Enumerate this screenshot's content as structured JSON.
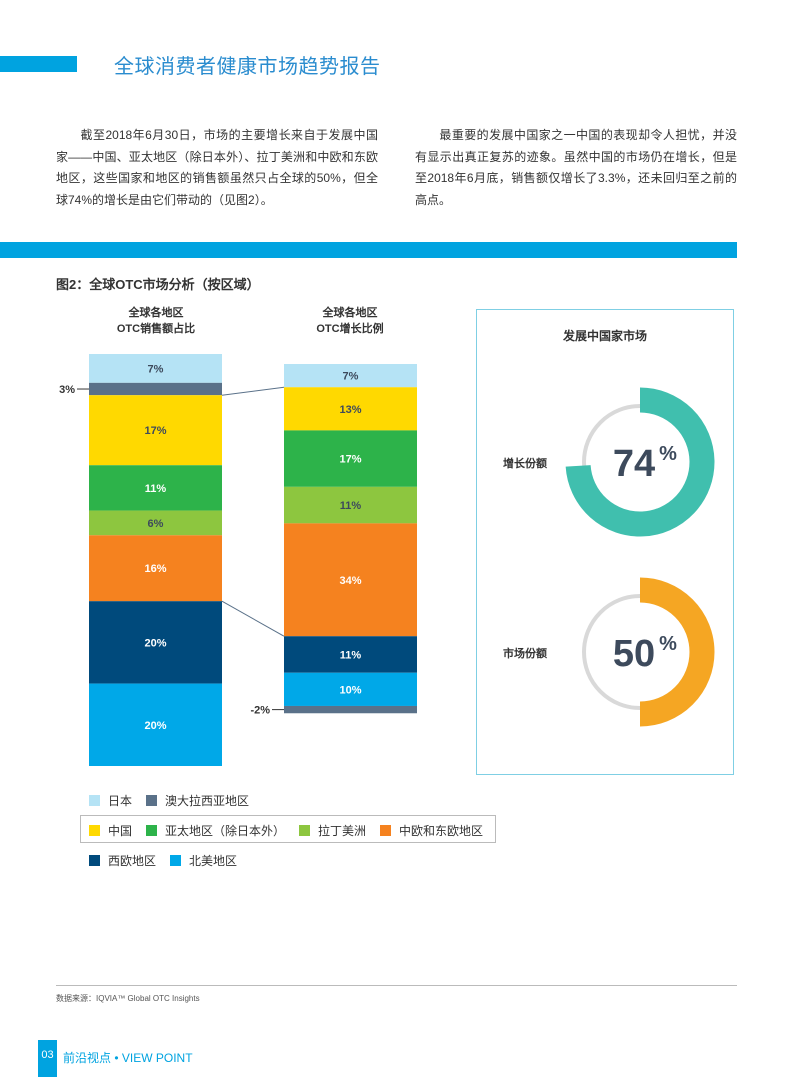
{
  "header": {
    "title": "全球消费者健康市场趋势报告"
  },
  "paragraphs": {
    "left": "截至2018年6月30日，市场的主要增长来自于发展中国家——中国、亚太地区（除日本外）、拉丁美洲和中欧和东欧地区，这些国家和地区的销售额虽然只占全球的50%，但全球74%的增长是由它们带动的（见图2）。",
    "right": "最重要的发展中国家之一中国的表现却令人担忧，并没有显示出真正复苏的迹象。虽然中国的市场仍在增长，但是至2018年6月底，销售额仅增长了3.3%，还未回归至之前的高点。"
  },
  "figure": {
    "title": "图2：全球OTC市场分析（按区域）"
  },
  "chart_data": [
    {
      "type": "bar",
      "title": "全球各地区 OTC销售额占比",
      "title_lines": [
        "全球各地区",
        "OTC销售额占比"
      ],
      "stacked": true,
      "categories": [
        "日本",
        "澳大拉西亚地区",
        "中国",
        "亚太地区（除日本外）",
        "拉丁美洲",
        "中欧和东欧地区",
        "西欧地区",
        "北美地区"
      ],
      "values": [
        7,
        3,
        17,
        11,
        6,
        16,
        20,
        20
      ],
      "labels": [
        "7%",
        "3%",
        "17%",
        "11%",
        "6%",
        "16%",
        "20%",
        "20%"
      ]
    },
    {
      "type": "bar",
      "title": "全球各地区 OTC增长比例",
      "title_lines": [
        "全球各地区",
        "OTC增长比例"
      ],
      "stacked": true,
      "categories": [
        "日本",
        "中国",
        "亚太地区（除日本外）",
        "拉丁美洲",
        "中欧和东欧地区",
        "西欧地区",
        "北美地区",
        "澳大拉西亚地区"
      ],
      "values": [
        7,
        13,
        17,
        11,
        34,
        11,
        10,
        -2
      ],
      "labels": [
        "7%",
        "13%",
        "17%",
        "11%",
        "34%",
        "11%",
        "10%",
        "-2%"
      ]
    },
    {
      "type": "pie",
      "title": "发展中国家市场",
      "donuts": [
        {
          "label": "增长份额",
          "value": 74,
          "display": "74",
          "unit": "%",
          "color": "#40bfae"
        },
        {
          "label": "市场份额",
          "value": 50,
          "display": "50",
          "unit": "%",
          "color": "#f5a623"
        }
      ]
    }
  ],
  "colors": {
    "日本": "#b5e3f5",
    "澳大拉西亚地区": "#5a7189",
    "中国": "#ffd900",
    "亚太地区（除日本外）": "#2db34a",
    "拉丁美洲": "#8dc63f",
    "中欧和东欧地区": "#f5821f",
    "西欧地区": "#004a7c",
    "北美地区": "#00a8e8",
    "accent": "#00a3e0",
    "text_dark": "#3d4a5c"
  },
  "legend": {
    "row1": [
      "日本",
      "澳大拉西亚地区"
    ],
    "row2": [
      "中国",
      "亚太地区（除日本外）",
      "拉丁美洲",
      "中欧和东欧地区"
    ],
    "row3": [
      "西欧地区",
      "北美地区"
    ]
  },
  "footer": {
    "source": "数据来源：IQVIA™ Global OTC Insights",
    "page_number": "03",
    "section": "前沿视点 • VIEW POINT"
  }
}
